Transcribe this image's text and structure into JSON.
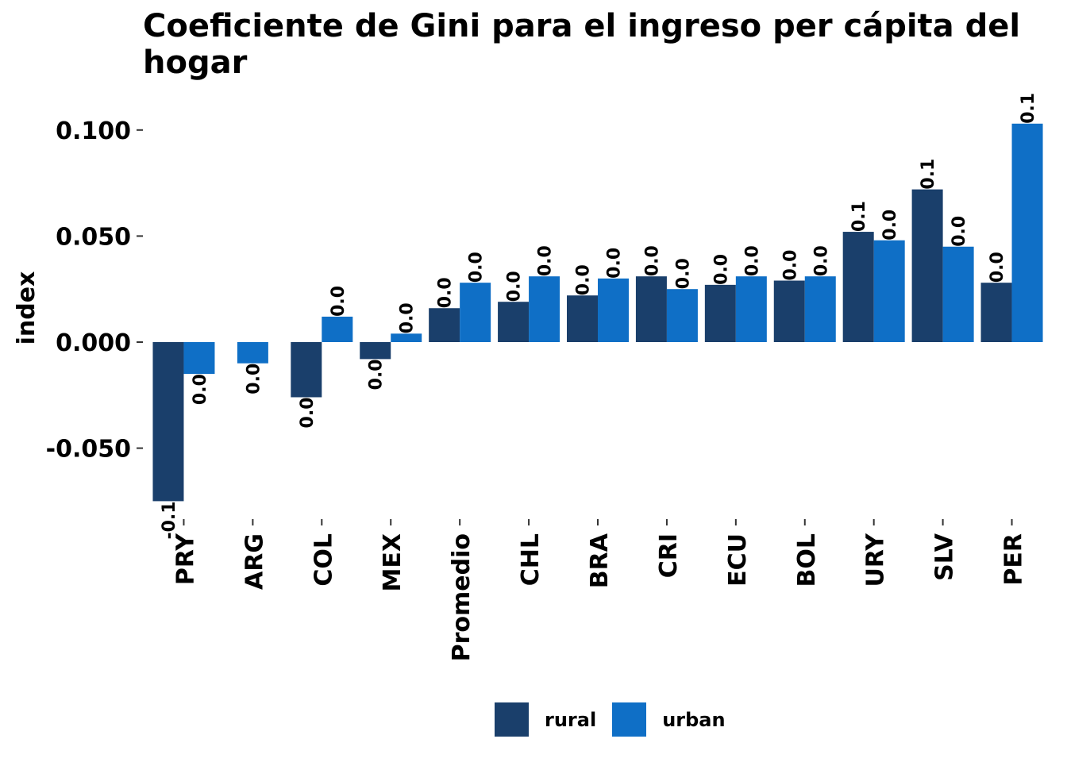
{
  "colors": {
    "rural": "#1a3f6b",
    "urban": "#0f6fc6"
  },
  "chart_data": {
    "type": "bar",
    "title": "Coeficiente de Gini para el ingreso per cápita del hogar",
    "xlabel": "",
    "ylabel": "index",
    "ylim": [
      -0.082,
      0.112
    ],
    "yticks": [
      -0.05,
      0.0,
      0.05,
      0.1
    ],
    "ytick_labels": [
      "-0.050",
      "0.000",
      "0.050",
      "0.100"
    ],
    "grid": false,
    "legend_position": "bottom",
    "categories": [
      "PRY",
      "ARG",
      "COL",
      "MEX",
      "Promedio",
      "CHL",
      "BRA",
      "CRI",
      "ECU",
      "BOL",
      "URY",
      "SLV",
      "PER"
    ],
    "series": [
      {
        "name": "rural",
        "values": [
          -0.075,
          null,
          -0.026,
          -0.008,
          0.016,
          0.019,
          0.022,
          0.031,
          0.027,
          0.029,
          0.052,
          0.072,
          0.028
        ],
        "labels": [
          "-0.1",
          "",
          "0.0",
          "0.0",
          "0.0",
          "0.0",
          "0.0",
          "0.0",
          "0.0",
          "0.0",
          "0.1",
          "0.1",
          "0.0"
        ]
      },
      {
        "name": "urban",
        "values": [
          -0.015,
          -0.01,
          0.012,
          0.004,
          0.028,
          0.031,
          0.03,
          0.025,
          0.031,
          0.031,
          0.048,
          0.045,
          0.103
        ],
        "labels": [
          "0.0",
          "0.0",
          "0.0",
          "0.0",
          "0.0",
          "0.0",
          "0.0",
          "0.0",
          "0.0",
          "0.0",
          "0.0",
          "0.0",
          "0.1"
        ]
      }
    ]
  }
}
